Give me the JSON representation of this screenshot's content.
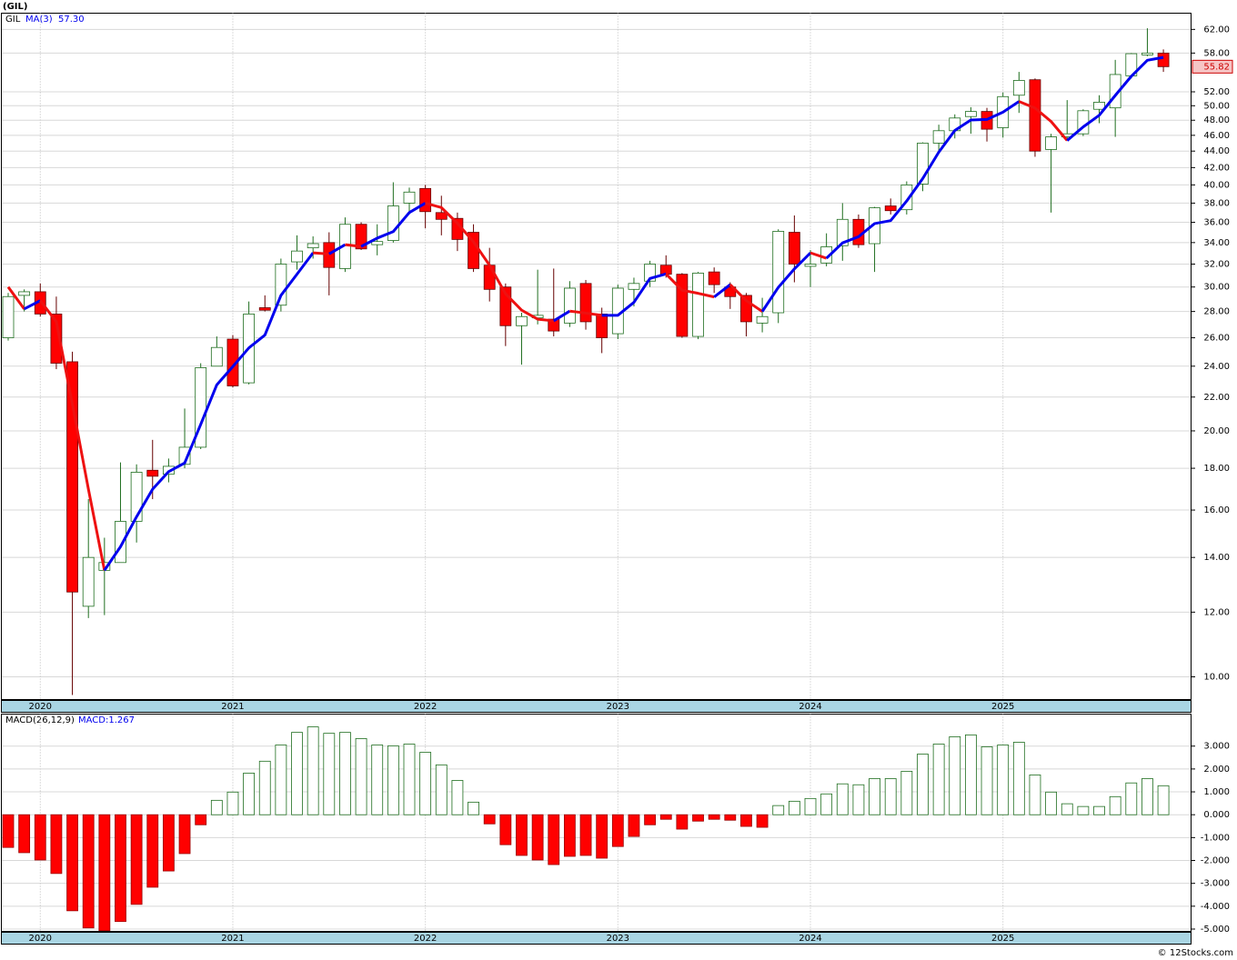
{
  "chart_data": [
    {
      "type": "candlestick",
      "title": "(GIL)",
      "symbol": "GIL",
      "categories": [
        null,
        null,
        "2020",
        null,
        null,
        null,
        null,
        null,
        null,
        null,
        null,
        null,
        null,
        null,
        "2021",
        null,
        null,
        null,
        null,
        null,
        null,
        null,
        null,
        null,
        null,
        null,
        "2022",
        null,
        null,
        null,
        null,
        null,
        null,
        null,
        null,
        null,
        null,
        null,
        "2023",
        null,
        null,
        null,
        null,
        null,
        null,
        null,
        null,
        null,
        null,
        null,
        "2024",
        null,
        null,
        null,
        null,
        null,
        null,
        null,
        null,
        null,
        null,
        null,
        "2025",
        null,
        null,
        null,
        null,
        null,
        null,
        null,
        null,
        null,
        null
      ],
      "open": [
        26,
        29.3,
        29.6,
        27.8,
        24.3,
        12.2,
        13.5,
        13.8,
        15.5,
        17.9,
        17.7,
        18.2,
        19.1,
        24,
        25.9,
        22.9,
        28.3,
        28.5,
        32.2,
        33.5,
        34,
        31.6,
        35.8,
        33.8,
        34.2,
        38,
        39.6,
        37,
        36.4,
        35,
        31.9,
        30,
        26.9,
        27.5,
        27.4,
        27.1,
        30.3,
        27.8,
        26.3,
        29.8,
        30.5,
        31.9,
        31.1,
        26.1,
        31.3,
        30,
        29.3,
        27.1,
        27.9,
        35,
        31.8,
        32.1,
        33.7,
        36.3,
        33.9,
        37.7,
        37.3,
        40.1,
        45,
        46.6,
        48.5,
        49.2,
        47,
        51.5,
        53.8,
        44.2,
        45.8,
        46.2,
        49.5,
        49.7,
        54.4,
        57.7,
        58
      ],
      "high": [
        29.5,
        29.8,
        30.3,
        29.2,
        25,
        16.5,
        14.8,
        18.3,
        18.2,
        19.5,
        18.5,
        21.3,
        24.2,
        26.1,
        26.2,
        28.8,
        29.3,
        32.5,
        34.7,
        34.6,
        35,
        36.5,
        36,
        35.8,
        40.3,
        39.7,
        40,
        38.8,
        37,
        35.8,
        33.5,
        30.3,
        27.9,
        31.5,
        31.6,
        30.5,
        30.6,
        28.3,
        30.2,
        30.8,
        32.3,
        32.8,
        31.2,
        31.3,
        31.7,
        30.4,
        29.5,
        29.1,
        35.3,
        36.7,
        33.3,
        34.9,
        38,
        36.8,
        37.6,
        38.5,
        40.4,
        45.1,
        47.4,
        48.8,
        49.8,
        49.7,
        51.9,
        55,
        54,
        46.2,
        50.8,
        49.5,
        51.5,
        56.9,
        58,
        62.2,
        58.6
      ],
      "low": [
        25.8,
        28,
        27.6,
        23.8,
        9.5,
        11.8,
        11.9,
        13.8,
        14.6,
        16.5,
        17.3,
        18,
        19,
        24,
        22.6,
        22.8,
        28,
        28,
        31.5,
        32.5,
        29.3,
        31.3,
        33.3,
        32.8,
        34,
        36.8,
        35.4,
        34.7,
        33.2,
        31.3,
        28.8,
        25.4,
        24.1,
        27,
        26.1,
        26.8,
        26.6,
        24.9,
        25.9,
        28.4,
        30,
        30.8,
        26,
        25.9,
        29.5,
        28.2,
        26.1,
        26.4,
        27.1,
        30.4,
        30,
        31.8,
        32.3,
        33.5,
        31.3,
        36.8,
        36.8,
        39.3,
        44,
        45.6,
        46.2,
        45.2,
        45.7,
        49,
        43.3,
        37,
        45.4,
        45.9,
        47.6,
        45.8,
        54,
        57.5,
        55
      ],
      "close": [
        29.2,
        29.6,
        27.8,
        24.2,
        12.7,
        14,
        13.8,
        15.5,
        17.8,
        17.6,
        18.1,
        19.1,
        23.9,
        25.3,
        22.7,
        27.8,
        28.1,
        32,
        33.2,
        33.9,
        31.7,
        35.8,
        33.4,
        34.1,
        37.7,
        39.2,
        37.1,
        36.3,
        34.3,
        31.6,
        29.8,
        26.9,
        27.6,
        27.7,
        26.5,
        29.9,
        27.2,
        26,
        29.9,
        30.3,
        32,
        31.1,
        26.1,
        31.2,
        30.2,
        29.2,
        27.2,
        27.6,
        35.1,
        32,
        32,
        33.6,
        36.3,
        33.8,
        37.5,
        37.2,
        40,
        45,
        46.6,
        48.3,
        49.2,
        46.8,
        51.3,
        53.7,
        44,
        45.8,
        46.2,
        49.3,
        50.5,
        54.6,
        57.9,
        58,
        55.82
      ],
      "up_color": "#1f6e1f",
      "down_color": "#ff0000",
      "last_label": "55.82",
      "ma": {
        "name": "MA(3)",
        "label": "57.30",
        "up_color": "#0000ee",
        "down_color": "#ee1111",
        "values": [
          30.0,
          28.2,
          28.87,
          27.2,
          21.57,
          16.97,
          13.5,
          14.43,
          15.7,
          16.97,
          17.83,
          18.27,
          20.37,
          22.77,
          23.97,
          25.27,
          26.2,
          29.3,
          31.1,
          33.03,
          32.93,
          33.8,
          33.63,
          34.43,
          35.07,
          37,
          38,
          37.53,
          35.9,
          34.07,
          31.9,
          29.43,
          28.1,
          27.4,
          27.27,
          28.03,
          27.87,
          27.7,
          27.7,
          28.73,
          30.73,
          31.13,
          29.73,
          29.47,
          29.17,
          30.2,
          28.87,
          28,
          29.97,
          31.57,
          33.03,
          32.53,
          33.97,
          34.57,
          35.87,
          36.17,
          38.23,
          40.73,
          43.87,
          46.63,
          48.03,
          48.1,
          49.1,
          50.6,
          49.67,
          47.83,
          45.33,
          47.1,
          48.67,
          51.47,
          54.33,
          56.83,
          57.3
        ]
      },
      "log_scale": true,
      "grid": true,
      "ylim": [
        9.38,
        64.9
      ],
      "yticks": [
        {
          "value": 10,
          "label": "10.00"
        },
        {
          "value": 12,
          "label": "12.00"
        },
        {
          "value": 14,
          "label": "14.00"
        },
        {
          "value": 16,
          "label": "16.00"
        },
        {
          "value": 18,
          "label": "18.00"
        },
        {
          "value": 20,
          "label": "20.00"
        },
        {
          "value": 22,
          "label": "22.00"
        },
        {
          "value": 24,
          "label": "24.00"
        },
        {
          "value": 26,
          "label": "26.00"
        },
        {
          "value": 28,
          "label": "28.00"
        },
        {
          "value": 30,
          "label": "30.00"
        },
        {
          "value": 32,
          "label": "32.00"
        },
        {
          "value": 34,
          "label": "34.00"
        },
        {
          "value": 36,
          "label": "36.00"
        },
        {
          "value": 38,
          "label": "38.00"
        },
        {
          "value": 40,
          "label": "40.00"
        },
        {
          "value": 42,
          "label": "42.00"
        },
        {
          "value": 44,
          "label": "44.00"
        },
        {
          "value": 46,
          "label": "46.00"
        },
        {
          "value": 48,
          "label": "48.00"
        },
        {
          "value": 50,
          "label": "50.00"
        },
        {
          "value": 52,
          "label": "52.00"
        },
        {
          "value": 58,
          "label": "58.00"
        },
        {
          "value": 62,
          "label": "62.00"
        }
      ]
    },
    {
      "type": "bar",
      "title": "MACD(26,12,9)",
      "label": "MACD:1.267",
      "categories": [
        null,
        null,
        "2020",
        null,
        null,
        null,
        null,
        null,
        null,
        null,
        null,
        null,
        null,
        null,
        "2021",
        null,
        null,
        null,
        null,
        null,
        null,
        null,
        null,
        null,
        null,
        null,
        "2022",
        null,
        null,
        null,
        null,
        null,
        null,
        null,
        null,
        null,
        null,
        null,
        "2023",
        null,
        null,
        null,
        null,
        null,
        null,
        null,
        null,
        null,
        null,
        null,
        "2024",
        null,
        null,
        null,
        null,
        null,
        null,
        null,
        null,
        null,
        null,
        null,
        "2025",
        null,
        null,
        null,
        null,
        null,
        null,
        null,
        null,
        null,
        null
      ],
      "values": [
        -1.43,
        -1.66,
        -1.98,
        -2.57,
        -4.2,
        -4.95,
        -5.07,
        -4.67,
        -3.92,
        -3.17,
        -2.46,
        -1.7,
        -0.44,
        0.63,
        0.99,
        1.82,
        2.34,
        3.05,
        3.6,
        3.84,
        3.56,
        3.6,
        3.33,
        3.05,
        3.01,
        3.09,
        2.73,
        2.18,
        1.5,
        0.55,
        -0.4,
        -1.31,
        -1.78,
        -1.98,
        -2.18,
        -1.82,
        -1.78,
        -1.9,
        -1.39,
        -0.95,
        -0.44,
        -0.2,
        -0.63,
        -0.28,
        -0.2,
        -0.24,
        -0.51,
        -0.55,
        0.4,
        0.59,
        0.71,
        0.91,
        1.35,
        1.31,
        1.58,
        1.58,
        1.9,
        2.65,
        3.09,
        3.41,
        3.49,
        2.97,
        3.05,
        3.17,
        1.74,
        0.99,
        0.48,
        0.36,
        0.36,
        0.79,
        1.39,
        1.58,
        1.267
      ],
      "up_color": "#1f6e1f",
      "down_color": "#ff0000",
      "grid": true,
      "ylim": [
        -5.1,
        4.4
      ],
      "yticks": [
        {
          "value": 3,
          "label": "3.000"
        },
        {
          "value": 2,
          "label": "2.000"
        },
        {
          "value": 1,
          "label": "1.000"
        },
        {
          "value": 0,
          "label": "0.000"
        },
        {
          "value": -1,
          "label": "-1.000"
        },
        {
          "value": -2,
          "label": "-2.000"
        },
        {
          "value": -3,
          "label": "-3.000"
        },
        {
          "value": -4,
          "label": "-4.000"
        },
        {
          "value": -5,
          "label": "-5.000"
        }
      ]
    }
  ],
  "footer": "© 12Stocks.com"
}
